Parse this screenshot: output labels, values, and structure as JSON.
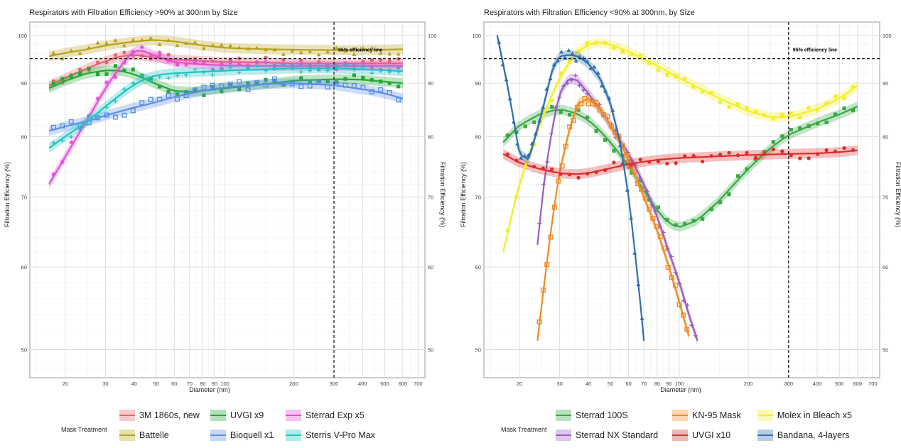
{
  "chart_data": [
    {
      "type": "scatter",
      "title": "Respirators with Filtration Efficiency >90% at 300nm by Size",
      "xlabel": "Diameter (nm)",
      "ylabel": "Filtration Efficiency (%)",
      "ylabel_right": "Filtration Efficiency (%)",
      "x_scale": "log",
      "y_scale": "log",
      "xlim": [
        14,
        750
      ],
      "ylim": [
        47,
        103
      ],
      "x_ticks": [
        20,
        30,
        40,
        50,
        60,
        70,
        80,
        90,
        100,
        200,
        300,
        400,
        500,
        600,
        700
      ],
      "y_ticks": [
        50,
        60,
        70,
        80,
        90,
        100
      ],
      "grid": true,
      "reference_hline": {
        "y": 95,
        "label": "95% efficiency line"
      },
      "reference_vline": {
        "x": 300
      },
      "legend": {
        "title": "Mask Treatment",
        "position": "bottom"
      },
      "series": [
        {
          "name": "3M 1860s, new",
          "color": "#e8636b",
          "marker": "circle",
          "x": [
            17,
            20,
            25,
            30,
            35,
            40,
            45,
            50,
            60,
            80,
            100,
            150,
            200,
            300,
            400,
            500,
            600
          ],
          "y": [
            89.5,
            91,
            93,
            94.5,
            95.5,
            95.8,
            95.5,
            95.2,
            94.8,
            94.5,
            94.3,
            94.2,
            94,
            94,
            94,
            94,
            94
          ]
        },
        {
          "name": "Battelle",
          "color": "#b8a21c",
          "marker": "triangle",
          "x": [
            17,
            20,
            25,
            30,
            35,
            40,
            45,
            50,
            60,
            80,
            100,
            150,
            200,
            300,
            400,
            500,
            600
          ],
          "y": [
            95.5,
            96.2,
            97,
            97.8,
            98.3,
            98.6,
            98.9,
            99,
            98.7,
            97.8,
            97.3,
            97,
            96.9,
            96.8,
            96.8,
            96.9,
            97
          ]
        },
        {
          "name": "UVGI x9",
          "color": "#22a836",
          "marker": "square",
          "x": [
            17,
            20,
            25,
            30,
            35,
            40,
            45,
            50,
            60,
            70,
            80,
            100,
            150,
            200,
            300,
            400,
            500,
            600
          ],
          "y": [
            89,
            90.5,
            92,
            92.6,
            92.5,
            91.8,
            90.8,
            89.8,
            88.5,
            88.3,
            88.5,
            89,
            89.8,
            90.5,
            90.8,
            90.7,
            90.3,
            90
          ]
        },
        {
          "name": "Bioquell x1",
          "color": "#5b8fe8",
          "marker": "square-cross",
          "x": [
            17,
            20,
            25,
            30,
            35,
            40,
            45,
            50,
            60,
            80,
            100,
            150,
            200,
            300,
            400,
            500,
            600
          ],
          "y": [
            81,
            81.8,
            82.8,
            83.8,
            84.6,
            85.3,
            85.8,
            86.3,
            87.3,
            88.5,
            89.2,
            89.8,
            90,
            89.6,
            88.8,
            88,
            87
          ]
        },
        {
          "name": "Sterrad Exp x5",
          "color": "#e14fd8",
          "marker": "asterisk",
          "x": [
            17,
            20,
            25,
            30,
            35,
            40,
            45,
            50,
            60,
            80,
            100,
            150,
            200,
            300,
            400,
            500,
            600
          ],
          "y": [
            72,
            76.5,
            83,
            89,
            93.5,
            96.8,
            96.5,
            95.5,
            94.3,
            93.8,
            93.6,
            93.5,
            93.5,
            93.5,
            93.5,
            93.5,
            93.5
          ]
        },
        {
          "name": "Sterris V-Pro Max",
          "color": "#22c2c4",
          "marker": "plus",
          "x": [
            17,
            20,
            25,
            30,
            35,
            40,
            45,
            50,
            60,
            80,
            100,
            150,
            200,
            300,
            400,
            500,
            600
          ],
          "y": [
            78,
            80,
            82.7,
            85.5,
            87.8,
            89.7,
            90.9,
            91.6,
            92,
            92.3,
            92.5,
            92.8,
            93,
            93,
            92.8,
            92.6,
            92.4
          ]
        }
      ]
    },
    {
      "type": "scatter",
      "title": "Respirators with Filtration Efficiency <90% at 300nm, by Size",
      "xlabel": "Diameter (nm)",
      "ylabel": "Filtration Efficiency (%)",
      "ylabel_right": "Filtration Efficiency (%)",
      "x_scale": "log",
      "y_scale": "log",
      "xlim": [
        14,
        750
      ],
      "ylim": [
        47,
        103
      ],
      "x_ticks": [
        20,
        30,
        40,
        50,
        60,
        70,
        80,
        90,
        100,
        200,
        300,
        400,
        500,
        600,
        700
      ],
      "y_ticks": [
        50,
        60,
        70,
        80,
        90,
        100
      ],
      "grid": true,
      "reference_hline": {
        "y": 95,
        "label": "95% efficiency line"
      },
      "reference_vline": {
        "x": 300
      },
      "legend": {
        "title": "Mask Treatment",
        "position": "bottom"
      },
      "series": [
        {
          "name": "Sterrad 100S",
          "color": "#39a845",
          "marker": "square",
          "x": [
            17,
            20,
            25,
            30,
            35,
            40,
            45,
            50,
            60,
            70,
            80,
            90,
            100,
            120,
            150,
            200,
            250,
            300,
            400,
            500,
            600
          ],
          "y": [
            79,
            82,
            84.2,
            85,
            84.3,
            83,
            81,
            79,
            75,
            71,
            68,
            66,
            65.5,
            66.5,
            69.5,
            74.5,
            78,
            80.3,
            82.5,
            84,
            85.5
          ]
        },
        {
          "name": "Sterrad NX Standard",
          "color": "#9d59c6",
          "marker": "plus",
          "x": [
            24,
            26,
            28,
            30,
            33,
            36,
            40,
            45,
            50,
            60,
            70,
            80,
            90,
            100,
            110,
            120
          ],
          "y": [
            63,
            74,
            82,
            88,
            91,
            90.5,
            88,
            85,
            82,
            77,
            72,
            67,
            62,
            58,
            54,
            51
          ]
        },
        {
          "name": "KN-95 Mask",
          "color": "#f08a24",
          "marker": "square-dot",
          "x": [
            24,
            26,
            28,
            30,
            33,
            36,
            40,
            45,
            50,
            60,
            70,
            80,
            90,
            100,
            110
          ],
          "y": [
            51,
            59,
            67,
            74,
            81,
            86,
            87,
            85,
            82,
            76,
            70,
            65,
            60,
            55.5,
            51.5
          ]
        },
        {
          "name": "UVGI x10",
          "color": "#dd2b2b",
          "marker": "circle",
          "x": [
            17,
            20,
            25,
            30,
            35,
            40,
            50,
            60,
            80,
            100,
            150,
            200,
            300,
            400,
            500,
            600
          ],
          "y": [
            77,
            75.5,
            74.4,
            73.8,
            73.6,
            73.8,
            74.6,
            75.3,
            76,
            76.3,
            76.6,
            76.8,
            77,
            77.1,
            77.3,
            77.6
          ]
        },
        {
          "name": "Molex in Bleach x5",
          "color": "#f2ef2a",
          "marker": "square",
          "x": [
            17,
            20,
            25,
            30,
            35,
            40,
            45,
            50,
            60,
            80,
            100,
            150,
            200,
            250,
            300,
            400,
            500,
            600
          ],
          "y": [
            62,
            72,
            83,
            91,
            96,
            98,
            98.5,
            98,
            96.5,
            93.5,
            91,
            87,
            84.6,
            83.5,
            83.5,
            85,
            87,
            89.5
          ]
        },
        {
          "name": "Bandana, 4-layers",
          "color": "#2f6fb0",
          "marker": "triangle",
          "x": [
            16,
            18,
            20,
            22,
            25,
            28,
            30,
            33,
            36,
            40,
            45,
            50,
            55,
            60,
            65,
            70
          ],
          "y": [
            100,
            88,
            77,
            76,
            84,
            93,
            95.5,
            95.8,
            95.5,
            94,
            91,
            86,
            79,
            70,
            60,
            51
          ]
        }
      ]
    }
  ]
}
